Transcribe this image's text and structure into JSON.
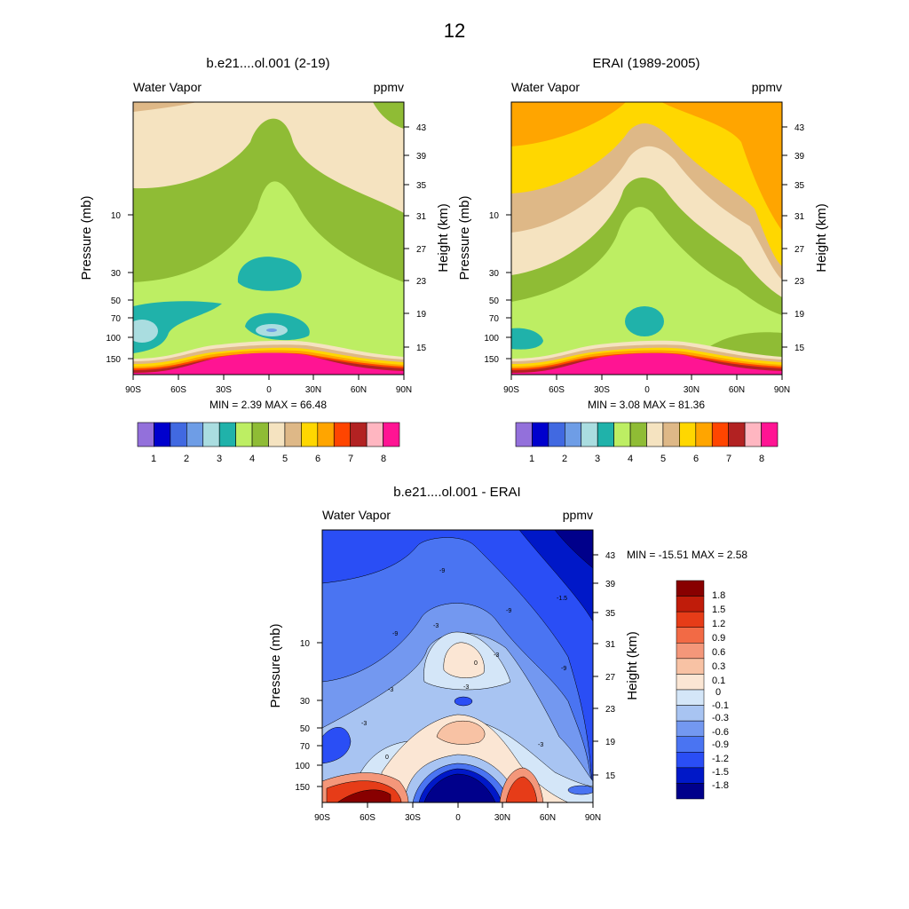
{
  "figure": {
    "title": "12"
  },
  "palette": {
    "seq": [
      "#9370db",
      "#0000cd",
      "#4169e1",
      "#6e9de6",
      "#aadde0",
      "#20b2aa",
      "#bdee63",
      "#8fbc35",
      "#f5e3c0",
      "#deb887",
      "#ffd700",
      "#ffa500",
      "#ff4500",
      "#b22222",
      "#ffb6c1",
      "#ff1493"
    ],
    "diff": [
      "#00008b",
      "#0018c8",
      "#2a4ef5",
      "#4a74f2",
      "#7398f0",
      "#a8c4f2",
      "#d4e6f8",
      "#fbe6d4",
      "#f8c2a4",
      "#f4977a",
      "#f26a45",
      "#e63c18",
      "#c01c0a",
      "#880000"
    ]
  },
  "chart_data": [
    {
      "type": "contour",
      "title": "b.e21....ol.001 (2-19)",
      "left_label": "Water Vapor",
      "right_label": "ppmv",
      "ylabel": "Pressure (mb)",
      "ylabel_right": "Height (km)",
      "x_ticks": [
        "90S",
        "60S",
        "30S",
        "0",
        "30N",
        "60N",
        "90N"
      ],
      "y_ticks": [
        "10",
        "30",
        "50",
        "70",
        "100",
        "150"
      ],
      "y_ticks_right": [
        "43",
        "39",
        "35",
        "31",
        "27",
        "23",
        "19",
        "15"
      ],
      "min_label": "MIN =   2.39  MAX =  66.48",
      "colorbar_labels": [
        "1",
        "2",
        "3",
        "4",
        "5",
        "6",
        "7",
        "8"
      ],
      "stats": {
        "min": 2.39,
        "max": 66.48
      }
    },
    {
      "type": "contour",
      "title": "ERAI (1989-2005)",
      "left_label": "Water Vapor",
      "right_label": "ppmv",
      "ylabel": "Pressure (mb)",
      "ylabel_right": "Height (km)",
      "x_ticks": [
        "90S",
        "60S",
        "30S",
        "0",
        "30N",
        "60N",
        "90N"
      ],
      "y_ticks": [
        "10",
        "30",
        "50",
        "70",
        "100",
        "150"
      ],
      "y_ticks_right": [
        "43",
        "39",
        "35",
        "31",
        "27",
        "23",
        "19",
        "15"
      ],
      "min_label": "MIN =   3.08  MAX =  81.36",
      "colorbar_labels": [
        "1",
        "2",
        "3",
        "4",
        "5",
        "6",
        "7",
        "8"
      ],
      "stats": {
        "min": 3.08,
        "max": 81.36
      }
    },
    {
      "type": "contour",
      "title": "b.e21....ol.001 - ERAI",
      "left_label": "Water Vapor",
      "right_label": "ppmv",
      "ylabel": "Pressure (mb)",
      "ylabel_right": "Height (km)",
      "x_ticks": [
        "90S",
        "60S",
        "30S",
        "0",
        "30N",
        "60N",
        "90N"
      ],
      "y_ticks": [
        "10",
        "30",
        "50",
        "70",
        "100",
        "150"
      ],
      "y_ticks_right": [
        "43",
        "39",
        "35",
        "31",
        "27",
        "23",
        "19",
        "15"
      ],
      "min_label": "MIN = -15.51  MAX =   2.58",
      "colorbar_labels": [
        "1.8",
        "1.5",
        "1.2",
        "0.9",
        "0.6",
        "0.3",
        "0.1",
        "0",
        "-0.1",
        "-0.3",
        "-0.6",
        "-0.9",
        "-1.2",
        "-1.5",
        "-1.8"
      ],
      "contour_labels": [
        "-9",
        "-9",
        "-9",
        "-9",
        "-3",
        "-3",
        "-3",
        "-3",
        "-3",
        "-3",
        "0",
        "0",
        "-1.5"
      ],
      "stats": {
        "min": -15.51,
        "max": 2.58
      }
    }
  ]
}
